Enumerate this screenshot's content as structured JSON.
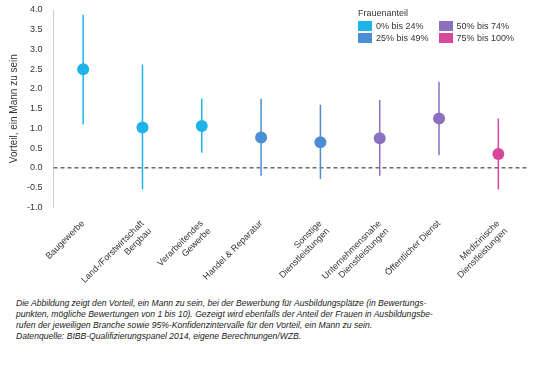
{
  "chart_data": {
    "type": "errorbar",
    "y_label": "Vorteil, ein Mann zu sein",
    "categories": [
      "Baugewerbe",
      [
        "Land-/Forstwirtschaft",
        "Bergbau"
      ],
      [
        "Verarbeitendes",
        "Gewerbe"
      ],
      "Handel & Reparatur",
      [
        "Sonstige",
        "Dienstleistungen"
      ],
      [
        "Unternehmensnahe",
        "Dienstleistungen"
      ],
      "Öffentlicher Dienst",
      [
        "Medizinische",
        "Dienstleistungen"
      ]
    ],
    "legend_title": "Frauenanteil",
    "legend": "top right",
    "grid": false,
    "marker": "circle",
    "series": [
      {
        "name": "0% bis 24%",
        "color": "#1eb4ea",
        "values": [
          2.5,
          1.02,
          1.06,
          null,
          null,
          null,
          null,
          null
        ],
        "ci_low": [
          1.1,
          -0.55,
          0.38,
          null,
          null,
          null,
          null,
          null
        ],
        "ci_high": [
          3.88,
          2.62,
          1.75,
          null,
          null,
          null,
          null,
          null
        ]
      },
      {
        "name": "25% bis 49%",
        "color": "#4a8fd6",
        "values": [
          null,
          null,
          null,
          0.77,
          0.65,
          null,
          null,
          null
        ],
        "ci_low": [
          null,
          null,
          null,
          -0.2,
          -0.28,
          null,
          null,
          null
        ],
        "ci_high": [
          null,
          null,
          null,
          1.75,
          1.6,
          null,
          null,
          null
        ]
      },
      {
        "name": "50% bis 74%",
        "color": "#8a70bf",
        "values": [
          null,
          null,
          null,
          null,
          null,
          0.75,
          1.25,
          null
        ],
        "ci_low": [
          null,
          null,
          null,
          null,
          null,
          -0.2,
          0.32,
          null
        ],
        "ci_high": [
          null,
          null,
          null,
          null,
          null,
          1.72,
          2.18,
          null
        ]
      },
      {
        "name": "75% bis 100%",
        "color": "#d6489a",
        "values": [
          null,
          null,
          null,
          null,
          null,
          null,
          null,
          0.35
        ],
        "ci_low": [
          null,
          null,
          null,
          null,
          null,
          null,
          null,
          -0.55
        ],
        "ci_high": [
          null,
          null,
          null,
          null,
          null,
          null,
          null,
          1.25
        ]
      }
    ],
    "reference_line": {
      "value": 0,
      "line_style": "dashed"
    },
    "ylim": [
      -1,
      4
    ],
    "yticks": [
      {
        "value": -1,
        "label": "-1.0"
      },
      -0.5,
      {
        "value": 0,
        "label": "0.0"
      },
      0.5,
      {
        "value": 1,
        "label": "1.0"
      },
      1.5,
      {
        "value": 2,
        "label": "2.0"
      },
      2.5,
      {
        "value": 3,
        "label": "3.0"
      },
      3.5,
      {
        "value": 4,
        "label": "4.0"
      }
    ],
    "caption": [
      "Die Abbildung zeigt den Vorteil, ein Mann zu sein, bei der Bewerbung für Ausbildungsplätze (in Bewertungs-",
      "punkten, mögliche Bewertungen von 1 bis 10). Gezeigt wird ebenfalls der Anteil der Frauen in Ausbildungsbe-",
      "rufen der jeweiligen Branche sowie 95%-Konfidenzintervalle für den Vorteil, ein Mann zu sein.",
      "Datenquelle: BIBB-Qualifizierungspanel 2014, eigene Berechnungen/WZB."
    ]
  }
}
